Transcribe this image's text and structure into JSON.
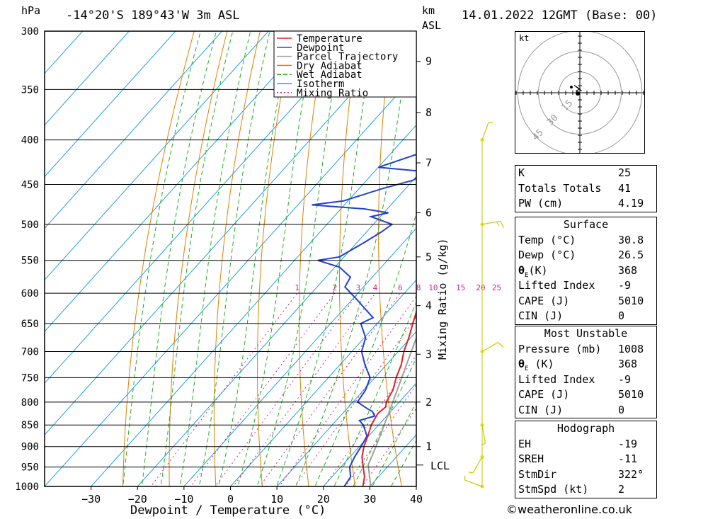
{
  "header": {
    "pressure_unit": "hPa",
    "location": "-14°20'S  189°43'W  3m  ASL",
    "height_unit_line1": "km",
    "height_unit_line2": "ASL",
    "datetime": "14.01.2022  12GMT  (Base: 00)"
  },
  "chart_data": {
    "type": "skew-t",
    "xlabel": "Dewpoint / Temperature (°C)",
    "right_axis_label": "Mixing Ratio (g/kg)",
    "xlim": [
      -40,
      40
    ],
    "pressure_range_hpa": [
      1000,
      300
    ],
    "x_ticks": [
      -30,
      -20,
      -10,
      0,
      10,
      20,
      30,
      40
    ],
    "pressure_ticks": [
      300,
      350,
      400,
      450,
      500,
      550,
      600,
      650,
      700,
      750,
      800,
      850,
      900,
      950,
      1000
    ],
    "height_ticks_km": [
      {
        "km": "1",
        "p": 900
      },
      {
        "km": "2",
        "p": 800
      },
      {
        "km": "3",
        "p": 705
      },
      {
        "km": "4",
        "p": 620
      },
      {
        "km": "5",
        "p": 545
      },
      {
        "km": "6",
        "p": 485
      },
      {
        "km": "7",
        "p": 425
      },
      {
        "km": "8",
        "p": 372
      },
      {
        "km": "9",
        "p": 325
      }
    ],
    "lcl": {
      "label": "LCL",
      "p": 945
    },
    "mixing_ratio_labels": [
      "1",
      "2",
      "3",
      "4",
      "6",
      "8",
      "10",
      "15",
      "20",
      "25"
    ],
    "mixing_ratio_values": [
      1,
      2,
      3,
      4,
      6,
      8,
      10,
      15,
      20,
      25
    ],
    "legend": [
      "Temperature",
      "Dewpoint",
      "Parcel Trajectory",
      "Dry Adiabat",
      "Wet Adiabat",
      "Isotherm",
      "Mixing Ratio"
    ],
    "colors": {
      "temperature": "#e02020",
      "dewpoint": "#2040d0",
      "parcel": "#a0a0a0",
      "dry_adiabat": "#e08000",
      "wet_adiabat": "#20b020",
      "isotherm": "#20a0e0",
      "mixing_ratio": "#d020a0"
    },
    "temperature": [
      [
        1008,
        30.8
      ],
      [
        1000,
        28.5
      ],
      [
        975,
        27
      ],
      [
        950,
        24.8
      ],
      [
        925,
        22.6
      ],
      [
        900,
        21
      ],
      [
        875,
        19.8
      ],
      [
        850,
        18.4
      ],
      [
        825,
        17.6
      ],
      [
        810,
        18
      ],
      [
        800,
        17.2
      ],
      [
        775,
        16.3
      ],
      [
        750,
        14.6
      ],
      [
        725,
        13.2
      ],
      [
        700,
        11.2
      ],
      [
        675,
        9.6
      ],
      [
        650,
        7.7
      ],
      [
        625,
        5.8
      ],
      [
        600,
        3.6
      ],
      [
        575,
        1.3
      ],
      [
        560,
        0.4
      ],
      [
        550,
        0.2
      ],
      [
        525,
        -1.9
      ],
      [
        500,
        -4.2
      ],
      [
        475,
        -6.8
      ],
      [
        450,
        -9.3
      ],
      [
        425,
        -11.8
      ],
      [
        400,
        -14.4
      ],
      [
        375,
        -17.4
      ],
      [
        360,
        -19.4
      ]
    ],
    "dewpoint": [
      [
        1008,
        26.5
      ],
      [
        1000,
        24.5
      ],
      [
        975,
        24
      ],
      [
        950,
        21.9
      ],
      [
        925,
        21
      ],
      [
        900,
        20.4
      ],
      [
        875,
        19.6
      ],
      [
        850,
        16.7
      ],
      [
        840,
        15
      ],
      [
        830,
        17.4
      ],
      [
        820,
        16
      ],
      [
        815,
        14.6
      ],
      [
        800,
        11
      ],
      [
        775,
        10.4
      ],
      [
        750,
        9
      ],
      [
        725,
        5.4
      ],
      [
        700,
        2.1
      ],
      [
        675,
        0.3
      ],
      [
        650,
        -3.5
      ],
      [
        640,
        -2
      ],
      [
        610,
        -9
      ],
      [
        590,
        -14
      ],
      [
        575,
        -14.7
      ],
      [
        560,
        -19
      ],
      [
        550,
        -25
      ],
      [
        545,
        -21
      ],
      [
        525,
        -18.5
      ],
      [
        510,
        -16.8
      ],
      [
        500,
        -16
      ],
      [
        490,
        -22
      ],
      [
        485,
        -19
      ],
      [
        480,
        -25
      ],
      [
        475,
        -37
      ],
      [
        470,
        -31
      ],
      [
        455,
        -25
      ],
      [
        445,
        -20
      ],
      [
        435,
        -19
      ],
      [
        430,
        -30
      ],
      [
        415,
        -24
      ],
      [
        405,
        -25
      ],
      [
        395,
        -25
      ],
      [
        375,
        -28
      ],
      [
        350,
        -30
      ],
      [
        345,
        -36
      ],
      [
        340,
        -30
      ],
      [
        330,
        -28
      ],
      [
        325,
        -32
      ],
      [
        315,
        -38
      ],
      [
        300,
        -40
      ]
    ],
    "parcel": [
      [
        1008,
        30.8
      ],
      [
        975,
        28.1
      ],
      [
        945,
        25.5
      ],
      [
        900,
        23.6
      ],
      [
        850,
        21.2
      ],
      [
        800,
        18.6
      ],
      [
        750,
        15.8
      ],
      [
        700,
        12.8
      ],
      [
        650,
        9.6
      ],
      [
        600,
        5.9
      ],
      [
        550,
        1.6
      ],
      [
        500,
        -3.3
      ],
      [
        450,
        -8.9
      ],
      [
        400,
        -15.5
      ],
      [
        375,
        -19.3
      ],
      [
        360,
        -21.8
      ]
    ],
    "wind_barbs": [
      {
        "p": 1000,
        "dir": 290,
        "speed": 5
      },
      {
        "p": 925,
        "dir": 210,
        "speed": 5
      },
      {
        "p": 850,
        "dir": 170,
        "speed": 5
      },
      {
        "p": 700,
        "dir": 60,
        "speed": 10
      },
      {
        "p": 500,
        "dir": 80,
        "speed": 15
      },
      {
        "p": 400,
        "dir": 20,
        "speed": 5
      }
    ]
  },
  "hodograph": {
    "unit": "kt",
    "ring_labels": [
      "15",
      "30",
      "45"
    ],
    "ring_values": [
      15,
      30,
      45
    ],
    "trace_kt": [
      [
        -1,
        0
      ],
      [
        -2,
        1
      ],
      [
        0,
        2
      ],
      [
        -3,
        4
      ],
      [
        1,
        1
      ]
    ]
  },
  "indices": {
    "rows": [
      {
        "label": "K",
        "value": "25"
      },
      {
        "label": "Totals Totals",
        "value": "41"
      },
      {
        "label": "PW (cm)",
        "value": "4.19"
      }
    ]
  },
  "surface": {
    "title": "Surface",
    "temp_label": "Temp (°C)",
    "temp": "30.8",
    "dewp_label": "Dewp (°C)",
    "dewp": "26.5",
    "theta_sym": "θ",
    "theta_sub": "E",
    "theta_unit": "(K)",
    "theta": "368",
    "li_label": "Lifted Index",
    "li": "-9",
    "cape_label": "CAPE (J)",
    "cape": "5010",
    "cin_label": "CIN (J)",
    "cin": "0"
  },
  "most_unstable": {
    "title": "Most Unstable",
    "pressure_label": "Pressure (mb)",
    "pressure": "1008",
    "theta_sym": "θ",
    "theta_sub": "E",
    "theta_unit": " (K)",
    "theta": "368",
    "li_label": "Lifted Index",
    "li": "-9",
    "cape_label": "CAPE (J)",
    "cape": "5010",
    "cin_label": "CIN (J)",
    "cin": "0"
  },
  "hodo_table": {
    "title": "Hodograph",
    "rows": [
      {
        "label": "EH",
        "value": "-19"
      },
      {
        "label": "SREH",
        "value": "-11"
      },
      {
        "label": "StmDir",
        "value": "322°"
      },
      {
        "label": "StmSpd (kt)",
        "value": "2"
      }
    ]
  },
  "credit": "©weatheronline.co.uk"
}
